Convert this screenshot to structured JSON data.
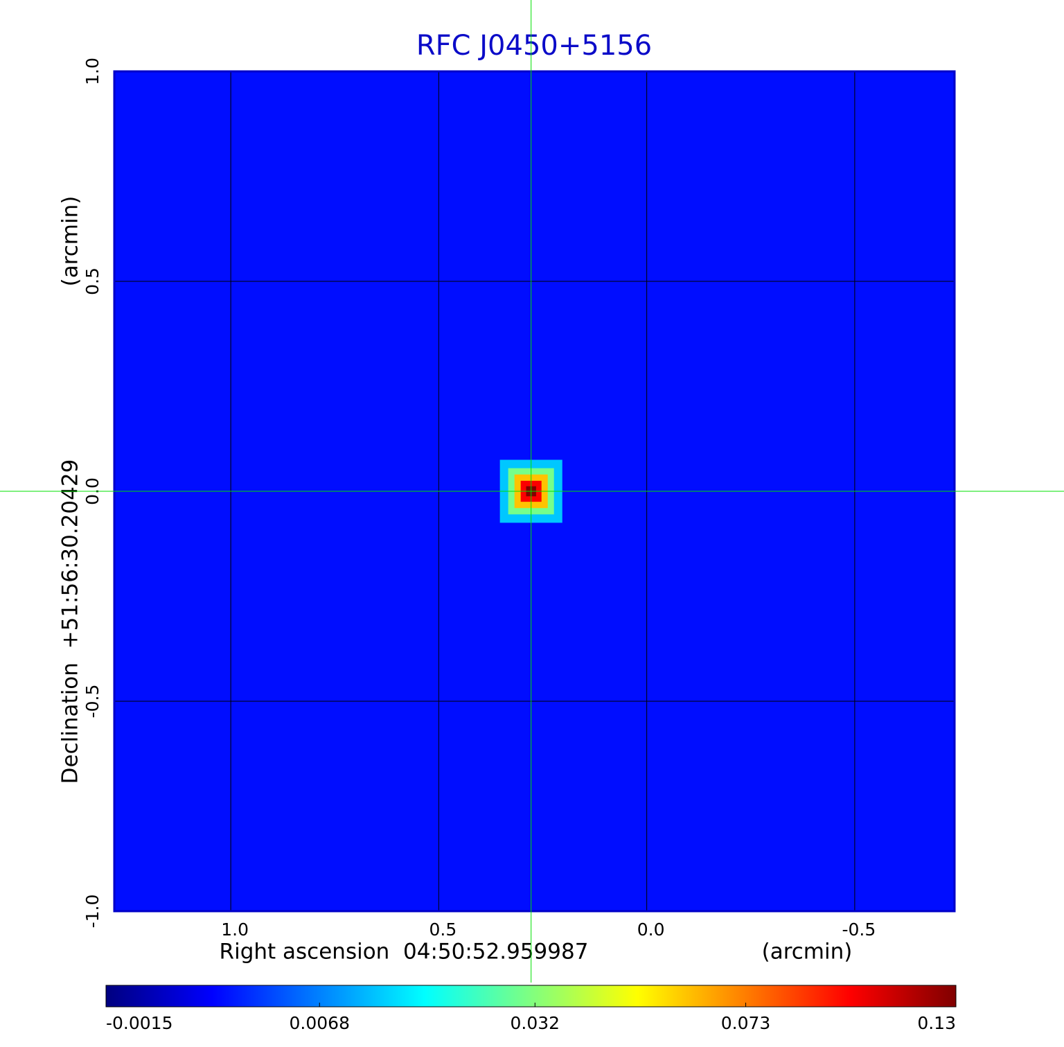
{
  "chart_data": {
    "type": "heatmap",
    "title": "RFC J0450+5156",
    "title_color": "#0b0bc8",
    "x_label": "Right ascension  04:50:52.959987",
    "x_unit_label": "(arcmin)",
    "y_label": "Declination  +51:56:30.20429",
    "y_unit_label": "(arcmin)",
    "xlim": [
      1.28,
      -0.74
    ],
    "ylim": [
      -1,
      1
    ],
    "xticks": [
      {
        "value": 1,
        "label": "1.0"
      },
      {
        "value": 0.5,
        "label": "0.5"
      },
      {
        "value": 0,
        "label": "0.0"
      },
      {
        "value": -0.5,
        "label": "-0.5"
      }
    ],
    "yticks": [
      {
        "value": -1,
        "label": "-1.0"
      },
      {
        "value": -0.5,
        "label": "-0.5"
      },
      {
        "value": 0,
        "label": "0.0"
      },
      {
        "value": 0.5,
        "label": "0.5"
      },
      {
        "value": 1,
        "label": "1.0"
      }
    ],
    "grid": true,
    "frame_color": "#0000c8",
    "crosshair": {
      "x": 0.278,
      "y": 0,
      "color": "#00e000"
    },
    "background_value": 0.001,
    "source": {
      "x": 0.278,
      "y": 0,
      "values": [
        0.012,
        0.03,
        0.06,
        0.1,
        0.13
      ],
      "radii": [
        0.075,
        0.055,
        0.04,
        0.025,
        0.012
      ]
    },
    "colorbar": {
      "colormap": "jet",
      "scale": "sqrt",
      "range": [
        -0.0015,
        0.13
      ],
      "ticks": [
        -0.0015,
        0.0068,
        0.032,
        0.073,
        0.13
      ]
    }
  }
}
